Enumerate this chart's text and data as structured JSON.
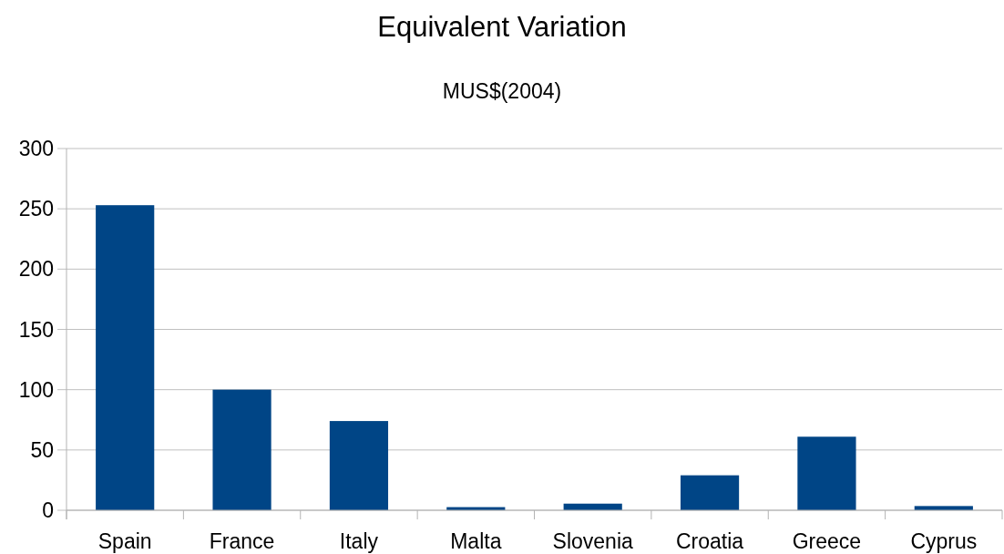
{
  "chart_data": {
    "type": "bar",
    "title": "Equivalent Variation",
    "subtitle": "MUS$(2004)",
    "categories": [
      "Spain",
      "France",
      "Italy",
      "Malta",
      "Slovenia",
      "Croatia",
      "Greece",
      "Cyprus"
    ],
    "values": [
      253,
      100,
      74,
      2.6,
      5.5,
      29,
      61,
      3.5
    ],
    "color": "#004586",
    "ylim": [
      0,
      300
    ],
    "yticks": [
      0,
      50,
      100,
      150,
      200,
      250,
      300
    ],
    "grid": "y"
  }
}
